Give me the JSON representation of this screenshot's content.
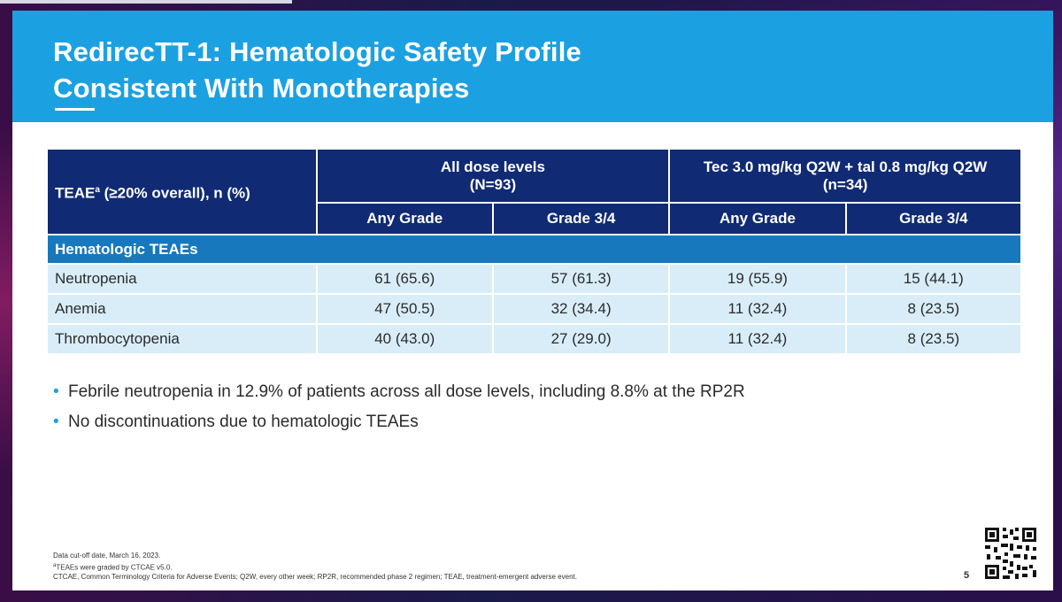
{
  "title": {
    "line1": "RedirecTT-1: Hematologic Safety Profile",
    "line2": "Consistent With Monotherapies"
  },
  "table": {
    "header": {
      "first_col": "TEAE",
      "first_col_sup": "a",
      "first_col_rest": " (≥20% overall), n (%)",
      "group1_line1": "All dose levels",
      "group1_line2": "(N=93)",
      "group2_line1": "Tec 3.0 mg/kg Q2W + tal 0.8 mg/kg Q2W",
      "group2_line2": "(n=34)",
      "sub_any_grade": "Any Grade",
      "sub_grade34": "Grade 3/4"
    },
    "section_label": "Hematologic TEAEs",
    "rows": [
      {
        "label": "Neutropenia",
        "all_any": "61 (65.6)",
        "all_g34": "57 (61.3)",
        "tec_any": "19 (55.9)",
        "tec_g34": "15 (44.1)"
      },
      {
        "label": "Anemia",
        "all_any": "47 (50.5)",
        "all_g34": "32 (34.4)",
        "tec_any": "11 (32.4)",
        "tec_g34": "8 (23.5)"
      },
      {
        "label": "Thrombocytopenia",
        "all_any": "40 (43.0)",
        "all_g34": "27 (29.0)",
        "tec_any": "11 (32.4)",
        "tec_g34": "8 (23.5)"
      }
    ]
  },
  "bullets": [
    "Febrile neutropenia in 12.9% of patients across all dose levels, including 8.8% at the RP2R",
    "No discontinuations due to hematologic TEAEs"
  ],
  "bullet_glyph": "•",
  "footnotes": {
    "line1": "Data cut-off date, March 16, 2023.",
    "line2_sup": "a",
    "line2": "TEAEs were graded by CTCAE v5.0.",
    "line3": "CTCAE, Common Terminology Criteria for Adverse Events; Q2W, every other week; RP2R, recommended phase 2 regimen; TEAE, treatment-emergent adverse event."
  },
  "page_number": "5",
  "colors": {
    "header_blue": "#1ba1e2",
    "table_navy": "#102a74",
    "section_blue": "#1778be",
    "row_light": "#d8edf8"
  }
}
